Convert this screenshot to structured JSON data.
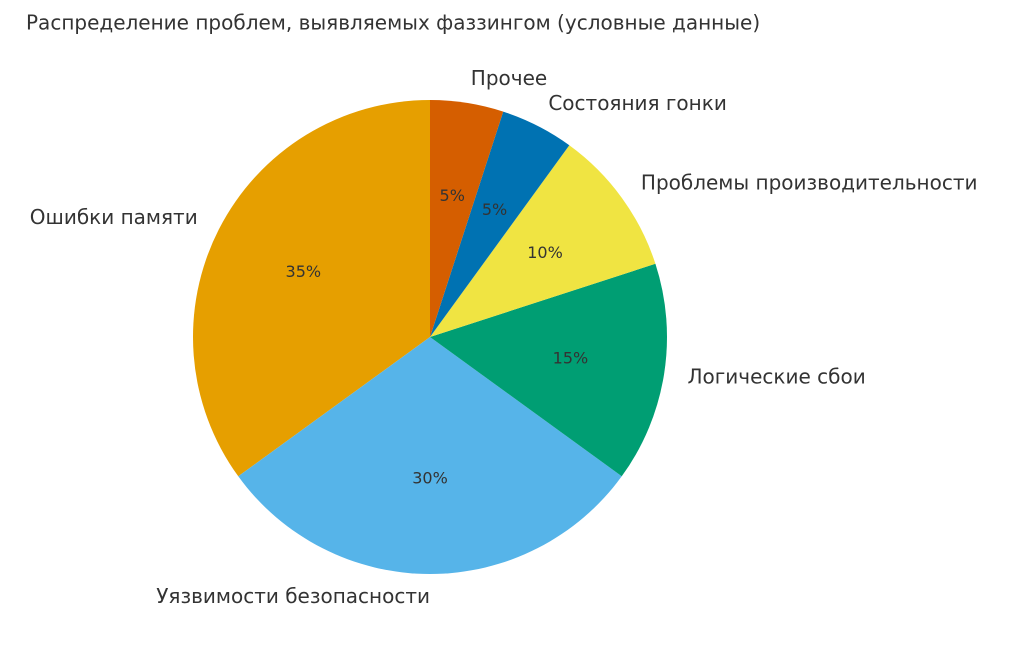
{
  "chart_data": {
    "type": "pie",
    "title": "Распределение проблем, выявляемых фаззингом (условные данные)",
    "categories": [
      "Ошибки памяти",
      "Уязвимости безопасности",
      "Логические сбои",
      "Проблемы производительности",
      "Состояния гонки",
      "Прочее"
    ],
    "values": [
      35,
      30,
      15,
      10,
      5,
      5
    ],
    "value_labels": [
      "35%",
      "30%",
      "15%",
      "10%",
      "5%",
      "5%"
    ],
    "colors": [
      "#E69F00",
      "#56B4E9",
      "#009E73",
      "#F0E442",
      "#0072B2",
      "#D55E00"
    ]
  }
}
